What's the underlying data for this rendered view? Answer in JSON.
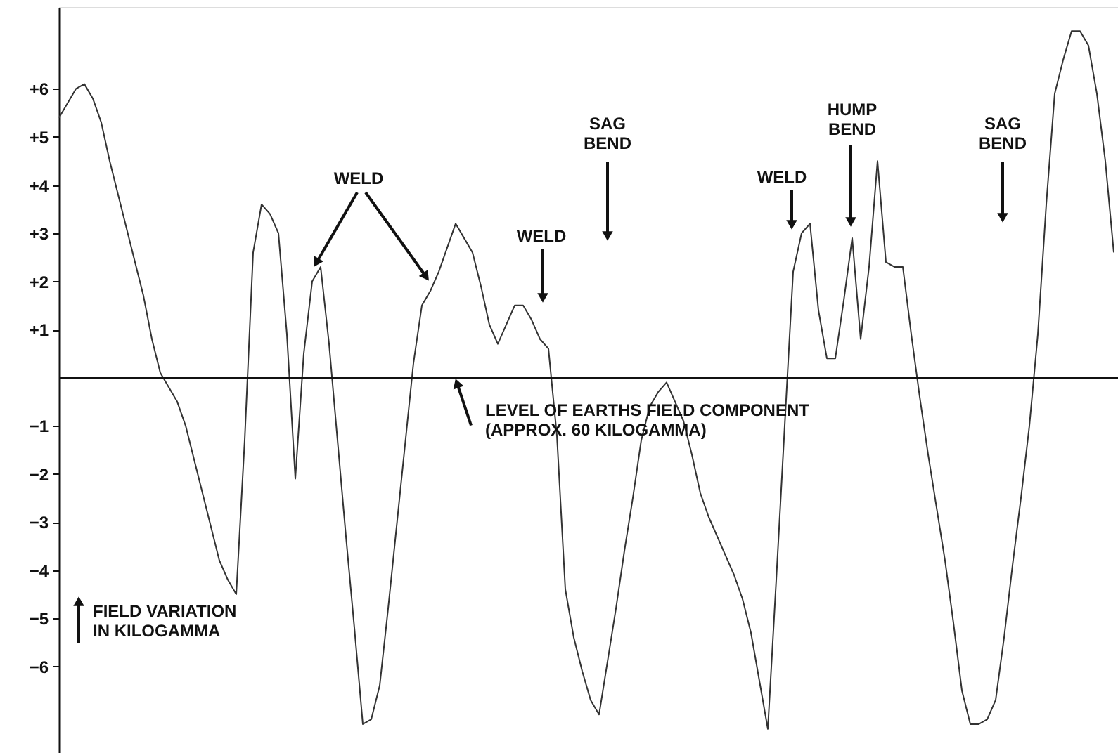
{
  "chart_data": {
    "type": "line",
    "categories": [
      null,
      null,
      null,
      null,
      null,
      null,
      null,
      null,
      null,
      null,
      null,
      null,
      null,
      null,
      null,
      null,
      null,
      null,
      null,
      null,
      null,
      null,
      null,
      null,
      null,
      null,
      null,
      null,
      null,
      null,
      null,
      null,
      null,
      null,
      null,
      null,
      null,
      null,
      null,
      null,
      null,
      null,
      null,
      null,
      null,
      null,
      null,
      null,
      null,
      null,
      null,
      null,
      null,
      null,
      null,
      null,
      null,
      null,
      null,
      null,
      null,
      null,
      null,
      null,
      null,
      null,
      null,
      null,
      null,
      null,
      null,
      null,
      null,
      null,
      null,
      null,
      null,
      null,
      null,
      null,
      null,
      null,
      null,
      null,
      null,
      null,
      null,
      null,
      null,
      null,
      null,
      null,
      null,
      null,
      null,
      null,
      null,
      null,
      null,
      null,
      null,
      null,
      null,
      null,
      null,
      null,
      null,
      null,
      null,
      null,
      null,
      null,
      null,
      null,
      null,
      null,
      null,
      null,
      null,
      null,
      null,
      null,
      null,
      null,
      null,
      null
    ],
    "values": [
      5.4,
      5.7,
      6.0,
      6.1,
      5.8,
      5.3,
      4.5,
      3.8,
      3.1,
      2.4,
      1.7,
      0.8,
      0.1,
      -0.2,
      -0.5,
      -1.0,
      -1.7,
      -2.4,
      -3.1,
      -3.8,
      -4.2,
      -4.5,
      -1.3,
      2.6,
      3.6,
      3.4,
      3.0,
      0.9,
      -2.1,
      0.5,
      2.0,
      2.3,
      0.7,
      -1.3,
      -3.3,
      -5.2,
      -7.2,
      -7.1,
      -6.4,
      -4.8,
      -3.1,
      -1.4,
      0.3,
      1.5,
      1.8,
      2.2,
      2.7,
      3.2,
      2.9,
      2.6,
      1.9,
      1.1,
      0.7,
      1.1,
      1.5,
      1.5,
      1.2,
      0.8,
      0.6,
      -1.2,
      -4.4,
      -5.4,
      -6.1,
      -6.7,
      -7.0,
      -5.9,
      -4.8,
      -3.6,
      -2.5,
      -1.3,
      -0.6,
      -0.3,
      -0.1,
      -0.5,
      -0.9,
      -1.6,
      -2.4,
      -2.9,
      -3.3,
      -3.7,
      -4.1,
      -4.6,
      -5.3,
      -6.3,
      -7.3,
      -4.2,
      -1.0,
      2.2,
      3.0,
      3.2,
      1.4,
      0.4,
      0.4,
      1.6,
      2.9,
      0.8,
      2.3,
      4.5,
      2.4,
      2.3,
      2.3,
      0.9,
      -0.4,
      -1.6,
      -2.7,
      -3.8,
      -5.1,
      -6.5,
      -7.2,
      -7.2,
      -7.1,
      -6.7,
      -5.4,
      -3.9,
      -2.5,
      -1.0,
      0.9,
      3.6,
      5.9,
      6.6,
      7.2,
      7.2,
      6.9,
      5.9,
      4.5,
      2.6
    ],
    "color": "#333333",
    "ylim": [
      -7.8,
      7.7
    ],
    "yticks": [
      {
        "value": 6,
        "label": "+6"
      },
      {
        "value": 5,
        "label": "+5"
      },
      {
        "value": 4,
        "label": "+4"
      },
      {
        "value": 3,
        "label": "+3"
      },
      {
        "value": 2,
        "label": "+2"
      },
      {
        "value": 1,
        "label": "+1"
      },
      -1,
      -2,
      -3,
      -4,
      -5,
      -6
    ],
    "ylabel": "FIELD VARIATION\nIN KILOGAMMA",
    "tick_labels": "y",
    "grid": false,
    "ref_lines": [
      {
        "axis": "y",
        "value": 0,
        "label": "LEVEL OF EARTHS FIELD COMPONENT\n(APPROX. 60 KILOGAMMA)",
        "color": "#111111"
      }
    ],
    "annotations": [
      "WELD",
      "SAG\nBEND",
      "WELD",
      "WELD",
      "HUMP\nBEND",
      "SAG\nBEND"
    ]
  }
}
